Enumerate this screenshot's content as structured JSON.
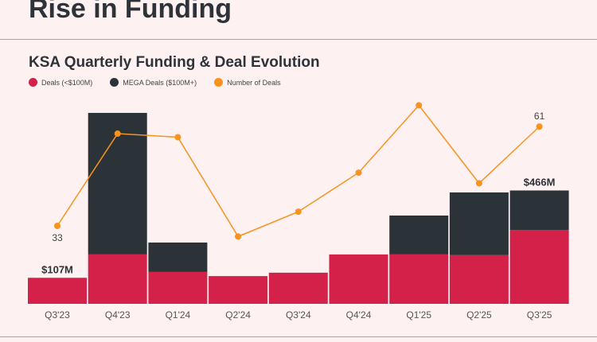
{
  "header": {
    "title": "Rise in Funding"
  },
  "chart_data": {
    "type": "bar",
    "title": "KSA Quarterly Funding & Deal Evolution",
    "stacked": true,
    "categories": [
      "Q3'23",
      "Q4'23",
      "Q1'24",
      "Q2'24",
      "Q3'24",
      "Q4'24",
      "Q1'25",
      "Q2'25",
      "Q3'25"
    ],
    "series": [
      {
        "name": "Deals (<$100M)",
        "kind": "bar",
        "color": "#d42149",
        "values": [
          107,
          203,
          131,
          114,
          128,
          203,
          203,
          200,
          304
        ]
      },
      {
        "name": "MEGA Deals ($100M+)",
        "kind": "bar",
        "color": "#2c3338",
        "values": [
          0,
          582,
          121,
          0,
          0,
          0,
          160,
          258,
          162
        ]
      },
      {
        "name": "Number of Deals",
        "kind": "line",
        "color": "#f7931e",
        "values": [
          33,
          59,
          58,
          30,
          37,
          48,
          67,
          45,
          61
        ]
      }
    ],
    "data_labels": [
      {
        "category": "Q3'23",
        "text": "$107M"
      },
      {
        "category": "Q3'25",
        "text": "$466M"
      },
      {
        "category": "Q3'23",
        "text": "33"
      },
      {
        "category": "Q3'25",
        "text": "61"
      }
    ],
    "legend": "top-left",
    "grid": false
  }
}
